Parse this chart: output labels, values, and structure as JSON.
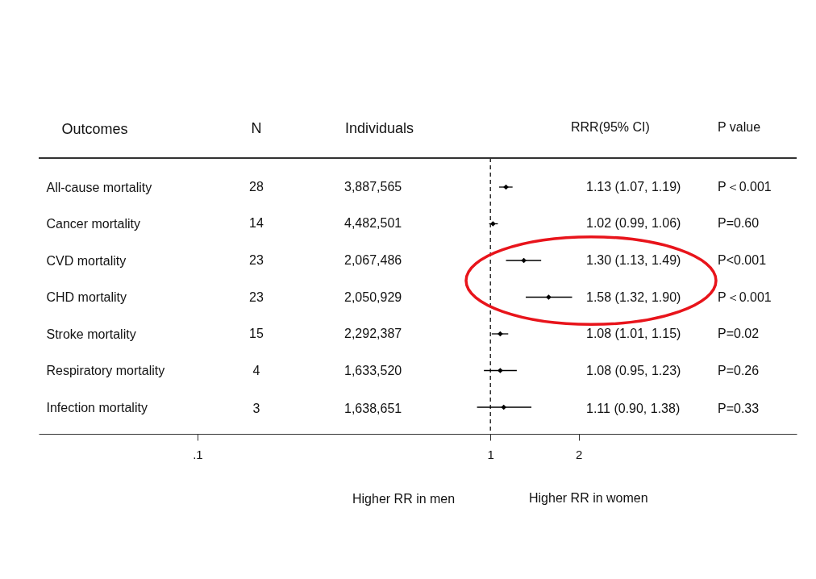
{
  "chart_data": {
    "type": "scatter",
    "orientation": "horizontal",
    "marker": "diamond",
    "log": "x",
    "ylabel": "Outcomes",
    "categories": [
      "All-cause mortality",
      "Cancer mortality",
      "CVD mortality",
      "CHD mortality",
      "Stroke mortality",
      "Respiratory mortality",
      "Infection mortality"
    ],
    "values": [
      1.13,
      1.02,
      1.3,
      1.58,
      1.08,
      1.08,
      1.11
    ],
    "errors": [
      [
        1.07,
        1.19
      ],
      [
        0.99,
        1.06
      ],
      [
        1.13,
        1.49
      ],
      [
        1.32,
        1.9
      ],
      [
        1.01,
        1.15
      ],
      [
        0.95,
        1.23
      ],
      [
        0.9,
        1.38
      ]
    ],
    "color": "#000000",
    "xlim": [
      0.0287,
      11.1
    ],
    "xticks": [
      {
        "value": 0.1,
        "label": ".1"
      },
      1,
      2
    ],
    "ref_lines": [
      {
        "axis": "x",
        "value": 1,
        "line_style": "dashed",
        "color": "#333333"
      }
    ],
    "grid": false,
    "legend": false,
    "annotations": [
      "N",
      "Individuals",
      "RRR(95% CI)",
      "P value",
      "28",
      "3,887,565",
      "1.13 (1.07, 1.19)",
      "P＜0.001",
      "14",
      "4,482,501",
      "1.02 (0.99, 1.06)",
      "P=0.60",
      "23",
      "2,067,486",
      "1.30 (1.13, 1.49)",
      "P<0.001",
      "23",
      "2,050,929",
      "1.58 (1.32, 1.90)",
      "P＜0.001",
      "15",
      "2,292,387",
      "1.08 (1.01, 1.15)",
      "P=0.02",
      "4",
      "1,633,520",
      "1.08 (0.95, 1.23)",
      "P=0.26",
      "3",
      "1,638,651",
      "1.11 (0.90, 1.38)",
      "P=0.33",
      "Higher RR in men",
      "Higher RR in women"
    ]
  }
}
